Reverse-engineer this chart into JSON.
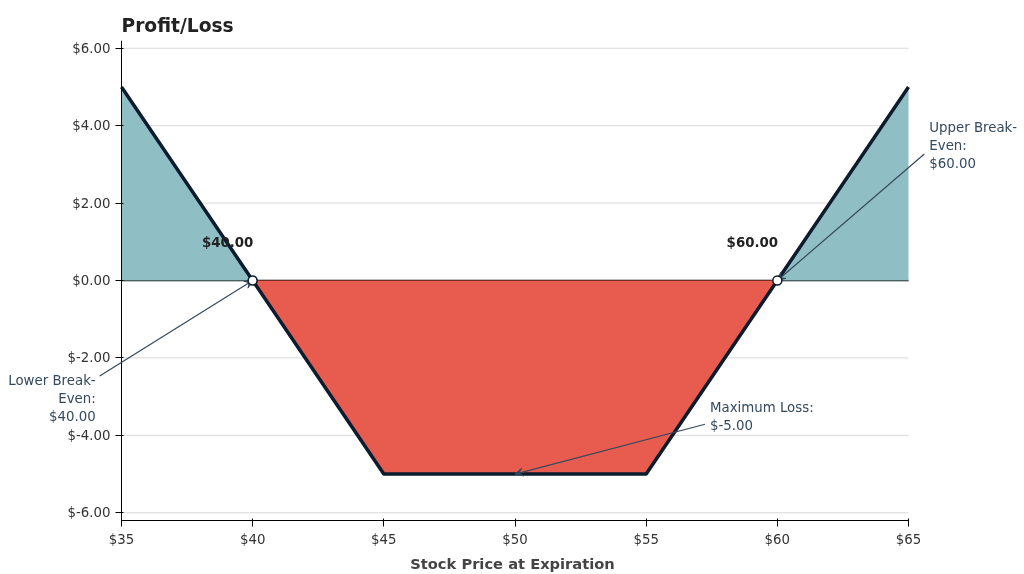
{
  "chart_data": {
    "type": "line",
    "title": "Profit/Loss",
    "xlabel": "Stock Price at Expiration",
    "xlim": [
      35,
      65
    ],
    "xticks": [
      {
        "value": 35,
        "label": "$35"
      },
      {
        "value": 40,
        "label": "$40"
      },
      {
        "value": 45,
        "label": "$45"
      },
      {
        "value": 50,
        "label": "$50"
      },
      {
        "value": 55,
        "label": "$55"
      },
      {
        "value": 60,
        "label": "$60"
      },
      {
        "value": 65,
        "label": "$65"
      }
    ],
    "ylim": [
      -6.2,
      6.2
    ],
    "yticks": [
      {
        "value": -6,
        "label": "$-6.00"
      },
      {
        "value": -4,
        "label": "$-4.00"
      },
      {
        "value": -2,
        "label": "$-2.00"
      },
      {
        "value": 0,
        "label": "$0.00"
      },
      {
        "value": 2,
        "label": "$2.00"
      },
      {
        "value": 4,
        "label": "$4.00"
      },
      {
        "value": 6,
        "label": "$6.00"
      }
    ],
    "grid": "y",
    "series": [
      {
        "type": "area",
        "color": "#8fbfc4",
        "x": [
          35,
          40
        ],
        "values": [
          5,
          0
        ]
      },
      {
        "type": "area",
        "color": "#e85c4f",
        "x": [
          40,
          45,
          55,
          60
        ],
        "values": [
          0,
          -5,
          -5,
          0
        ]
      },
      {
        "type": "area",
        "color": "#8fbfc4",
        "x": [
          60,
          65
        ],
        "values": [
          0,
          5
        ]
      },
      {
        "color": "#0d1b2e",
        "x": [
          35,
          40,
          45,
          55,
          60,
          65
        ],
        "values": [
          5,
          0,
          -5,
          -5,
          0,
          5
        ]
      },
      {
        "type": "scatter",
        "color": "#ffffff",
        "marker": "circle",
        "x": [
          40,
          60
        ],
        "values": [
          0,
          0
        ]
      }
    ],
    "ref_lines": [
      {
        "axis": "y",
        "value": 0,
        "color": "#000000"
      }
    ],
    "annotations": [
      {
        "text": "$40.00",
        "x": 40,
        "y": 0
      },
      {
        "text": "$60.00",
        "x": 60,
        "y": 0
      },
      {
        "text": "Lower Break-\nEven:\n$40.00",
        "x": 40,
        "y": 0
      },
      {
        "text": "Upper Break-\nEven:\n$60.00",
        "x": 60,
        "y": 0
      },
      {
        "text": "Maximum Loss:\n$-5.00",
        "x": 50,
        "y": -5
      }
    ]
  }
}
